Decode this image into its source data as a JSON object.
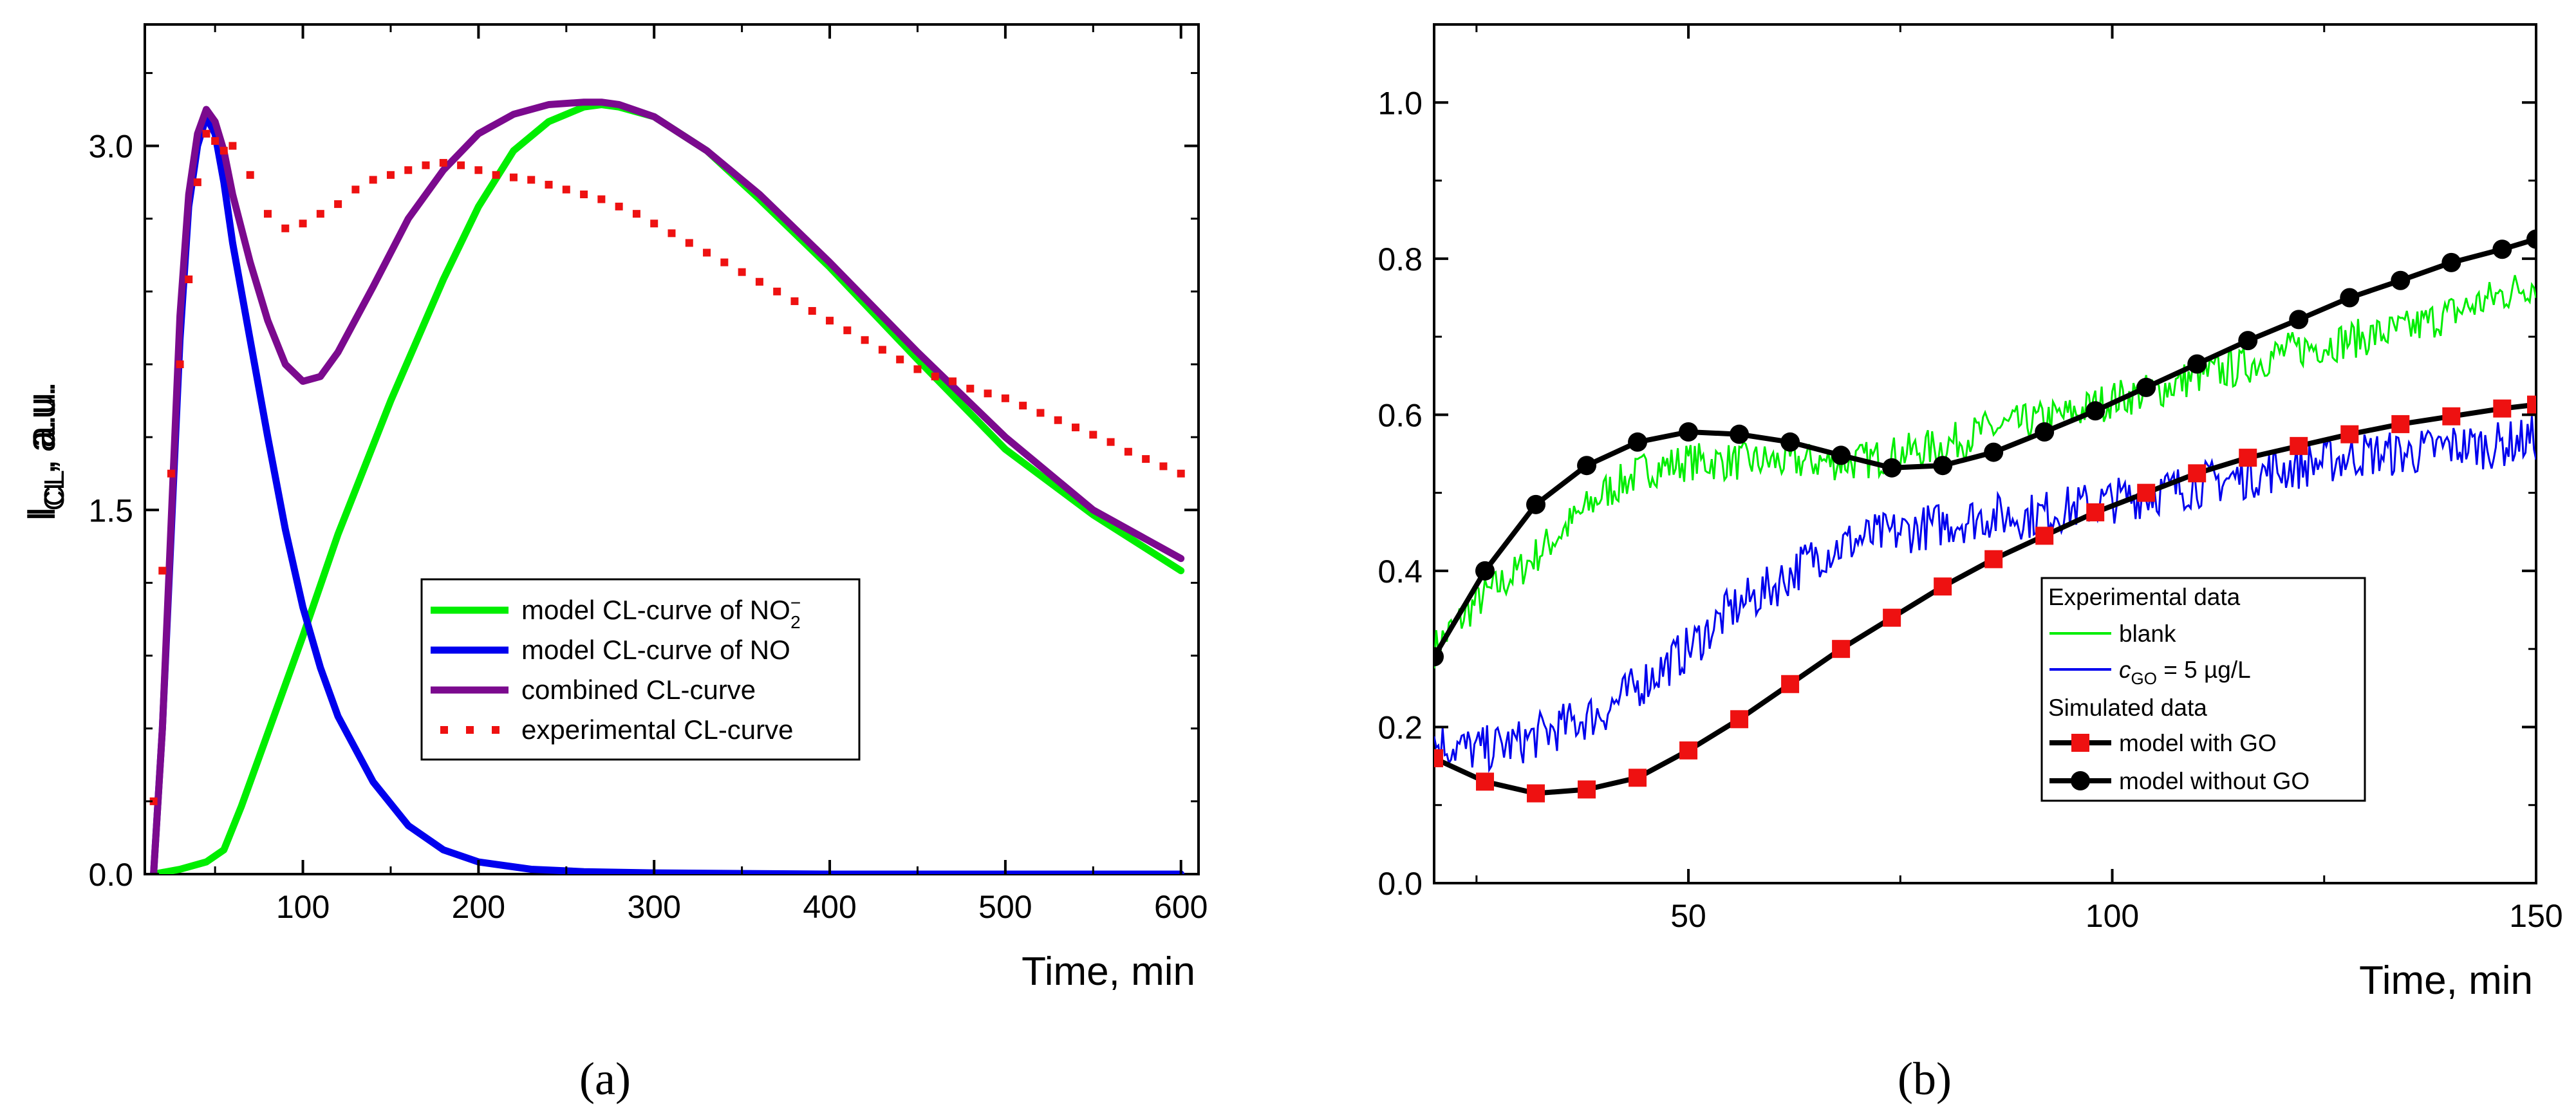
{
  "figure": {
    "panel_labels": [
      "(a)",
      "(b)"
    ]
  },
  "chart_data": [
    {
      "type": "line",
      "panel": "(a)",
      "title": "",
      "xlabel": "Time, min",
      "ylabel_main": "I",
      "ylabel_sub": "CL",
      "ylabel_tail": ", a.u.",
      "xlim": [
        10,
        610
      ],
      "ylim": [
        0,
        3.5
      ],
      "xticks": [
        100,
        200,
        300,
        400,
        500,
        600
      ],
      "xtick_labels": [
        "100",
        "200",
        "300",
        "400",
        "500",
        "600"
      ],
      "yticks": [
        0,
        1.5,
        3.0
      ],
      "ytick_labels": [
        "0.0",
        "1.5",
        "3.0"
      ],
      "grid": false,
      "legend_position": "center-right",
      "series": [
        {
          "name": "model CL-curve of NO",
          "legend_text": "model CL-curve of NO",
          "legend_sup": "−",
          "legend_sub": "2",
          "color": "#00ee00",
          "style": "line",
          "x": [
            15,
            30,
            45,
            55,
            65,
            80,
            100,
            120,
            150,
            180,
            200,
            220,
            240,
            260,
            270,
            280,
            300,
            330,
            360,
            400,
            450,
            500,
            550,
            600
          ],
          "values": [
            0.0,
            0.02,
            0.05,
            0.1,
            0.28,
            0.58,
            0.98,
            1.4,
            1.95,
            2.45,
            2.75,
            2.98,
            3.1,
            3.16,
            3.17,
            3.16,
            3.12,
            2.98,
            2.78,
            2.5,
            2.12,
            1.75,
            1.48,
            1.25
          ]
        },
        {
          "name": "model  CL-curve of NO",
          "legend_text": "model  CL-curve of NO",
          "color": "#0000ee",
          "style": "line",
          "x": [
            15,
            20,
            25,
            30,
            35,
            40,
            45,
            50,
            55,
            60,
            70,
            80,
            90,
            100,
            110,
            120,
            140,
            160,
            180,
            200,
            230,
            260,
            300,
            400,
            500,
            600
          ],
          "values": [
            0.0,
            0.6,
            1.4,
            2.2,
            2.75,
            3.0,
            3.12,
            3.05,
            2.85,
            2.6,
            2.2,
            1.8,
            1.42,
            1.1,
            0.85,
            0.65,
            0.38,
            0.2,
            0.1,
            0.05,
            0.02,
            0.01,
            0.005,
            0.0,
            0.0,
            0.0
          ]
        },
        {
          "name": "combined CL-curve",
          "legend_text": "combined CL-curve",
          "color": "#7b0a8e",
          "style": "line",
          "x": [
            15,
            20,
            25,
            30,
            35,
            40,
            45,
            50,
            55,
            60,
            70,
            80,
            90,
            100,
            110,
            120,
            140,
            160,
            180,
            200,
            220,
            240,
            260,
            270,
            280,
            300,
            330,
            360,
            400,
            450,
            500,
            550,
            600
          ],
          "values": [
            0.0,
            0.6,
            1.45,
            2.3,
            2.8,
            3.05,
            3.15,
            3.1,
            2.98,
            2.8,
            2.52,
            2.28,
            2.1,
            2.03,
            2.05,
            2.15,
            2.42,
            2.7,
            2.9,
            3.05,
            3.13,
            3.17,
            3.18,
            3.18,
            3.17,
            3.12,
            2.98,
            2.8,
            2.52,
            2.15,
            1.8,
            1.5,
            1.3
          ]
        },
        {
          "name": "experimental CL-curve",
          "legend_text": "experimental CL-curve",
          "color": "#ee1111",
          "style": "markers",
          "x": [
            15,
            20,
            25,
            30,
            35,
            40,
            45,
            50,
            55,
            60,
            70,
            80,
            90,
            100,
            110,
            120,
            130,
            140,
            150,
            160,
            170,
            180,
            190,
            200,
            210,
            220,
            230,
            240,
            250,
            260,
            270,
            280,
            290,
            300,
            310,
            320,
            330,
            340,
            350,
            360,
            370,
            380,
            390,
            400,
            410,
            420,
            430,
            440,
            450,
            460,
            470,
            480,
            490,
            500,
            510,
            520,
            530,
            540,
            550,
            560,
            570,
            580,
            590,
            600
          ],
          "values": [
            0.3,
            1.25,
            1.65,
            2.1,
            2.45,
            2.85,
            3.05,
            3.02,
            2.98,
            3.0,
            2.88,
            2.72,
            2.66,
            2.68,
            2.72,
            2.76,
            2.82,
            2.86,
            2.88,
            2.9,
            2.92,
            2.93,
            2.92,
            2.9,
            2.88,
            2.87,
            2.86,
            2.84,
            2.82,
            2.8,
            2.78,
            2.75,
            2.72,
            2.68,
            2.64,
            2.6,
            2.56,
            2.52,
            2.48,
            2.44,
            2.4,
            2.36,
            2.32,
            2.28,
            2.24,
            2.2,
            2.16,
            2.12,
            2.08,
            2.05,
            2.03,
            2.0,
            1.98,
            1.96,
            1.93,
            1.9,
            1.87,
            1.84,
            1.81,
            1.78,
            1.74,
            1.71,
            1.68,
            1.65
          ]
        }
      ]
    },
    {
      "type": "line",
      "panel": "(b)",
      "title": "",
      "xlabel": "Time, min",
      "ylabel_main": "I",
      "ylabel_sub": "CL",
      "ylabel_tail": ", a.u.",
      "xlim": [
        20,
        150
      ],
      "ylim": [
        0,
        1.1
      ],
      "xticks": [
        50,
        100,
        150
      ],
      "xtick_labels": [
        "50",
        "100",
        "150"
      ],
      "yticks": [
        0.0,
        0.2,
        0.4,
        0.6,
        0.8,
        1.0
      ],
      "ytick_labels": [
        "0.0",
        "0.2",
        "0.4",
        "0.6",
        "0.8",
        "1.0"
      ],
      "grid": false,
      "legend_position": "lower-right",
      "legend_headers": [
        "Experimental data",
        "Simulated data"
      ],
      "series": [
        {
          "name": "blank",
          "legend_text": "blank",
          "group": "Experimental data",
          "color": "#00ee00",
          "style": "noisy-line",
          "noise": 0.025,
          "x": [
            20,
            25,
            30,
            35,
            40,
            45,
            50,
            55,
            60,
            65,
            70,
            75,
            80,
            85,
            90,
            95,
            100,
            105,
            110,
            115,
            120,
            125,
            130,
            135,
            140,
            145,
            150
          ],
          "values": [
            0.3,
            0.36,
            0.4,
            0.45,
            0.5,
            0.53,
            0.54,
            0.54,
            0.54,
            0.54,
            0.54,
            0.55,
            0.56,
            0.58,
            0.59,
            0.6,
            0.62,
            0.63,
            0.65,
            0.66,
            0.68,
            0.69,
            0.7,
            0.71,
            0.73,
            0.75,
            0.77
          ]
        },
        {
          "name": "cGO = 5 µg/L",
          "legend_c": "c",
          "legend_sub": "GO",
          "legend_rest": " = 5 µg/L",
          "group": "Experimental data",
          "color": "#0000ee",
          "style": "noisy-line",
          "noise": 0.03,
          "x": [
            20,
            25,
            30,
            35,
            40,
            45,
            50,
            55,
            60,
            65,
            70,
            75,
            80,
            85,
            90,
            95,
            100,
            105,
            110,
            115,
            120,
            125,
            130,
            135,
            140,
            145,
            150
          ],
          "values": [
            0.18,
            0.17,
            0.18,
            0.2,
            0.22,
            0.26,
            0.3,
            0.35,
            0.38,
            0.42,
            0.44,
            0.45,
            0.46,
            0.47,
            0.47,
            0.48,
            0.49,
            0.5,
            0.51,
            0.52,
            0.53,
            0.54,
            0.55,
            0.55,
            0.56,
            0.56,
            0.57
          ]
        },
        {
          "name": "model with GO",
          "legend_text": "model with GO",
          "group": "Simulated data",
          "color": "#000000",
          "marker": "square",
          "marker_color": "#ee1111",
          "x": [
            20,
            26,
            32,
            38,
            44,
            50,
            56,
            62,
            68,
            74,
            80,
            86,
            92,
            98,
            104,
            110,
            116,
            122,
            128,
            134,
            140,
            146,
            150
          ],
          "values": [
            0.16,
            0.13,
            0.115,
            0.12,
            0.135,
            0.17,
            0.21,
            0.255,
            0.3,
            0.34,
            0.38,
            0.415,
            0.445,
            0.475,
            0.5,
            0.525,
            0.545,
            0.56,
            0.575,
            0.588,
            0.598,
            0.608,
            0.613
          ]
        },
        {
          "name": "model without GO",
          "legend_text": "model without GO",
          "group": "Simulated data",
          "color": "#000000",
          "marker": "circle",
          "marker_color": "#000000",
          "x": [
            20,
            26,
            32,
            38,
            44,
            50,
            56,
            62,
            68,
            74,
            80,
            86,
            92,
            98,
            104,
            110,
            116,
            122,
            128,
            134,
            140,
            146,
            150
          ],
          "values": [
            0.29,
            0.4,
            0.485,
            0.535,
            0.565,
            0.578,
            0.575,
            0.565,
            0.548,
            0.532,
            0.535,
            0.552,
            0.578,
            0.605,
            0.635,
            0.665,
            0.695,
            0.722,
            0.75,
            0.772,
            0.795,
            0.812,
            0.825
          ]
        }
      ]
    }
  ]
}
